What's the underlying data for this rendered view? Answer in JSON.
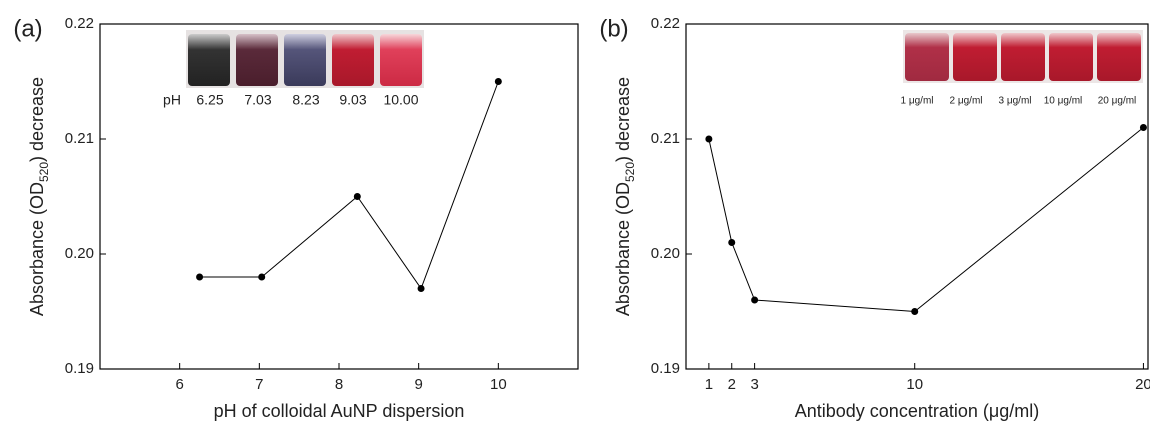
{
  "chart_data": [
    {
      "type": "line",
      "panel_label": "(a)",
      "x_label": "pH of colloidal AuNP dispersion",
      "y_label": "Absorbance (OD",
      "y_label_sub": "520",
      "y_label_end": ") decrease",
      "x": [
        6.25,
        7.03,
        8.23,
        9.03,
        10.0
      ],
      "values": [
        0.198,
        0.198,
        0.205,
        0.197,
        0.215
      ],
      "color": "#000000",
      "xlim": [
        5,
        11
      ],
      "xticks": [
        6,
        7,
        8,
        9,
        10
      ],
      "ylim": [
        0.19,
        0.22
      ],
      "yticks": [
        0.19,
        {
          "value": 0.2,
          "label": "0.20"
        },
        0.21,
        0.22
      ],
      "inset_title": "pH",
      "inset_labels": [
        "6.25",
        "7.03",
        "8.23",
        "9.03",
        "10.00"
      ]
    },
    {
      "type": "line",
      "panel_label": "(b)",
      "x_label": "Antibody concentration (μg/ml)",
      "y_label": "Absorbance (OD",
      "y_label_sub": "520",
      "y_label_end": ") decrease",
      "x": [
        1,
        2,
        3,
        10,
        20
      ],
      "values": [
        0.21,
        0.201,
        0.196,
        0.195,
        0.211
      ],
      "color": "#000000",
      "xlim": [
        0,
        20.2
      ],
      "xticks": [
        1,
        2,
        3,
        10,
        20
      ],
      "ylim": [
        0.19,
        0.22
      ],
      "yticks": [
        0.19,
        {
          "value": 0.2,
          "label": "0.20"
        },
        0.21,
        0.22
      ],
      "inset_labels": [
        "1 μg/ml",
        "2 μg/ml",
        "3 μg/ml",
        "10 μg/ml",
        "20 μg/ml"
      ]
    }
  ]
}
